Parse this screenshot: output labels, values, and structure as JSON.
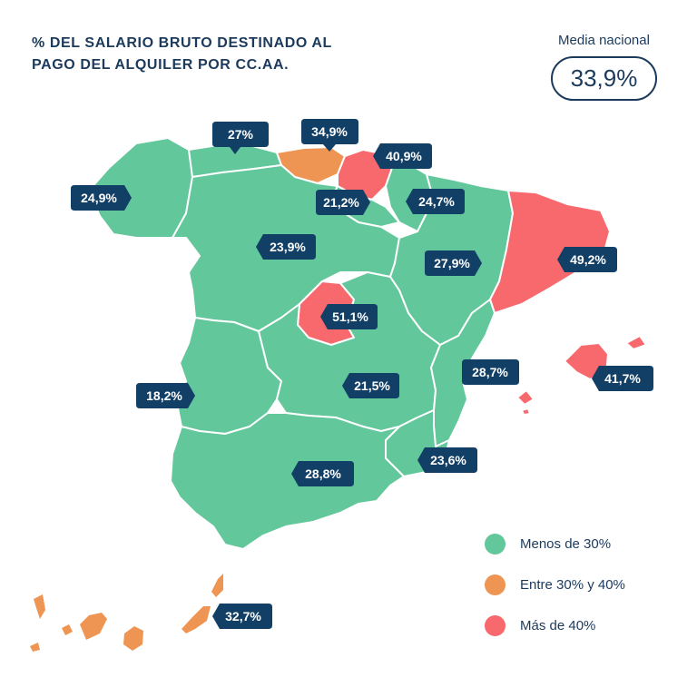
{
  "title_line1": "% DEL SALARIO BRUTO DESTINADO AL",
  "title_line2": "PAGO DEL ALQUILER POR CC.AA.",
  "national_average": {
    "label": "Media nacional",
    "value": "33,9%"
  },
  "colors": {
    "green": "#62c79a",
    "orange": "#ee9553",
    "red": "#f8696e",
    "label_bg": "#123f66",
    "text": "#1b3a5c"
  },
  "regions": {
    "galicia": "24,9%",
    "asturias": "27%",
    "cantabria": "34,9%",
    "pais_vasco": "40,9%",
    "navarra": "24,7%",
    "la_rioja": "21,2%",
    "castilla_y_leon": "23,9%",
    "aragon": "27,9%",
    "cataluna": "49,2%",
    "madrid": "51,1%",
    "extremadura": "18,2%",
    "castilla_la_mancha": "21,5%",
    "comunidad_valenciana": "28,7%",
    "baleares": "41,7%",
    "murcia": "23,6%",
    "andalucia": "28,8%",
    "canarias": "32,7%"
  },
  "legend": [
    {
      "label": "Menos de 30%",
      "color": "#62c79a"
    },
    {
      "label": "Entre 30% y 40%",
      "color": "#ee9553"
    },
    {
      "label": "Más de 40%",
      "color": "#f8696e"
    }
  ]
}
